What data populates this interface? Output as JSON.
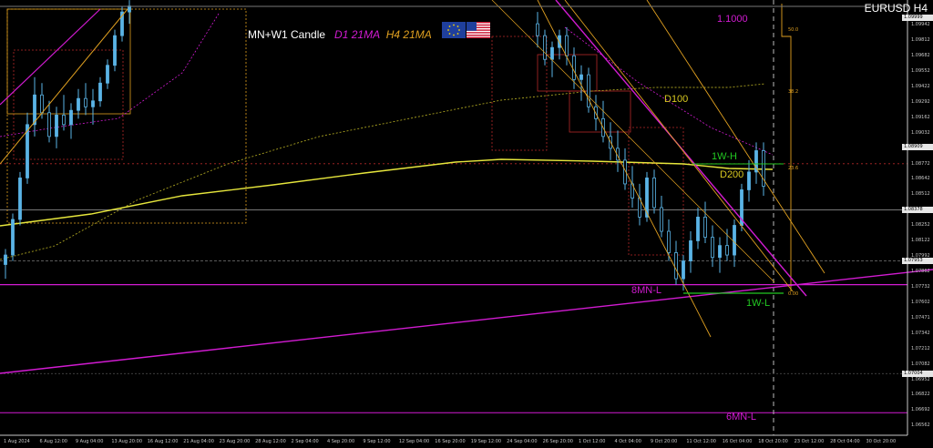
{
  "window": {
    "symbol_title": "EURUSD H4"
  },
  "overlay": {
    "title_white": "MN+W1 Candle",
    "title_d1": "D1 21MA",
    "title_h4": "H4 21MA"
  },
  "labels": {
    "level_1_1000": "1.1000",
    "d100": "D100",
    "d200": "D200",
    "w1_high": "1W-H",
    "w1_low": "1W-L",
    "mn8_low": "8MN-L",
    "mn6_low": "6MN-L"
  },
  "fibo_labels": [
    "50.0",
    "38.2",
    "23.6",
    "0.00"
  ],
  "colors": {
    "background": "#000000",
    "axis": "#c8c8c8",
    "candle": "#5ab4e6",
    "magenta": "#d21bd2",
    "yellow_ma": "#e6e63c",
    "orange": "#e0a020",
    "dark_red": "#b42828",
    "green": "#22c822",
    "gray": "#a0a0a0"
  },
  "chart_data": {
    "type": "candlestick",
    "symbol": "EURUSD",
    "timeframe": "H4",
    "ylim": [
      1.0648,
      1.1012
    ],
    "y_ticks": [
      "1.09942",
      "1.09812",
      "1.09682",
      "1.09552",
      "1.09422",
      "1.09292",
      "1.09162",
      "1.09032",
      "1.08902",
      "1.08772",
      "1.08642",
      "1.08512",
      "1.08382",
      "1.08252",
      "1.08122",
      "1.07992",
      "1.07862",
      "1.07732",
      "1.07602",
      "1.07471",
      "1.07342",
      "1.07212",
      "1.07082",
      "1.06952",
      "1.06822",
      "1.06692",
      "1.06562"
    ],
    "x_ticks": [
      "1 Aug 2024",
      "6 Aug 12:00",
      "9 Aug 04:00",
      "13 Aug 20:00",
      "16 Aug 12:00",
      "21 Aug 04:00",
      "23 Aug 20:00",
      "28 Aug 12:00",
      "2 Sep 04:00",
      "4 Sep 20:00",
      "9 Sep 12:00",
      "12 Sep 04:00",
      "16 Sep 20:00",
      "19 Sep 12:00",
      "24 Sep 04:00",
      "26 Sep 20:00",
      "1 Oct 12:00",
      "4 Oct 04:00",
      "9 Oct 20:00",
      "11 Oct 12:00",
      "16 Oct 04:00",
      "18 Oct 20:00",
      "23 Oct 12:00",
      "28 Oct 04:00",
      "30 Oct 20:00"
    ],
    "price_tags": [
      {
        "value": "1.09999",
        "y_price": 1.1,
        "color": "#e6e6e6"
      },
      {
        "value": "1.08909",
        "y_price": 1.0891,
        "color": "#e6e6e6"
      },
      {
        "value": "1.08378",
        "y_price": 1.0838,
        "color": "#e6e6e6"
      },
      {
        "value": "1.07953",
        "y_price": 1.0795,
        "color": "#e6e6e6"
      },
      {
        "value": "1.07004",
        "y_price": 1.07,
        "color": "#e6e6e6"
      }
    ],
    "candles_left": [
      [
        1.0792,
        1.0805,
        1.078,
        1.08
      ],
      [
        1.08,
        1.0835,
        1.0795,
        1.083
      ],
      [
        1.083,
        1.087,
        1.0825,
        1.0865
      ],
      [
        1.0865,
        1.092,
        1.086,
        1.091
      ],
      [
        1.091,
        1.095,
        1.09,
        1.0935
      ],
      [
        1.0935,
        1.0945,
        1.0915,
        1.092
      ],
      [
        1.092,
        1.093,
        1.0895,
        1.09
      ],
      [
        1.09,
        1.0925,
        1.089,
        1.0918
      ],
      [
        1.0918,
        1.0935,
        1.0905,
        1.091
      ],
      [
        1.091,
        1.0928,
        1.0898,
        1.0922
      ],
      [
        1.0922,
        1.094,
        1.0915,
        1.0932
      ],
      [
        1.0932,
        1.0945,
        1.0918,
        1.0925
      ],
      [
        1.0925,
        1.094,
        1.091,
        1.093
      ],
      [
        1.093,
        1.095,
        1.0925,
        1.0945
      ],
      [
        1.0945,
        1.0965,
        1.094,
        1.096
      ],
      [
        1.096,
        1.099,
        1.0955,
        1.0985
      ],
      [
        1.0985,
        1.101,
        1.098,
        1.1005
      ],
      [
        1.1005,
        1.1015,
        1.0995,
        1.101
      ]
    ],
    "candles_right": [
      [
        1.0995,
        1.1005,
        1.0975,
        1.0985
      ],
      [
        1.0985,
        1.099,
        1.096,
        1.0965
      ],
      [
        1.0965,
        1.098,
        1.095,
        1.0975
      ],
      [
        1.0975,
        1.099,
        1.0965,
        1.0985
      ],
      [
        1.0985,
        1.0992,
        1.096,
        1.0968
      ],
      [
        1.0968,
        1.0975,
        1.094,
        1.0948
      ],
      [
        1.0948,
        1.096,
        1.093,
        1.0952
      ],
      [
        1.0952,
        1.0958,
        1.092,
        1.0925
      ],
      [
        1.0925,
        1.0935,
        1.0905,
        1.0915
      ],
      [
        1.0915,
        1.093,
        1.0895,
        1.09
      ],
      [
        1.09,
        1.0912,
        1.088,
        1.089
      ],
      [
        1.089,
        1.0905,
        1.087,
        1.088
      ],
      [
        1.088,
        1.089,
        1.0855,
        1.086
      ],
      [
        1.086,
        1.0875,
        1.084,
        1.0848
      ],
      [
        1.0848,
        1.086,
        1.0825,
        1.0832
      ],
      [
        1.0832,
        1.087,
        1.0828,
        1.0865
      ],
      [
        1.0865,
        1.0872,
        1.0835,
        1.084
      ],
      [
        1.084,
        1.085,
        1.0815,
        1.082
      ],
      [
        1.082,
        1.083,
        1.0795,
        1.0802
      ],
      [
        1.0802,
        1.0812,
        1.0775,
        1.078
      ],
      [
        1.078,
        1.08,
        1.077,
        1.0795
      ],
      [
        1.0795,
        1.082,
        1.0785,
        1.0812
      ],
      [
        1.0812,
        1.084,
        1.0805,
        1.0832
      ],
      [
        1.0832,
        1.0845,
        1.081,
        1.0815
      ],
      [
        1.0815,
        1.0825,
        1.079,
        1.0798
      ],
      [
        1.0798,
        1.0815,
        1.0785,
        1.0808
      ],
      [
        1.0808,
        1.0822,
        1.0795,
        1.08
      ],
      [
        1.08,
        1.083,
        1.079,
        1.0825
      ],
      [
        1.0825,
        1.086,
        1.082,
        1.0855
      ],
      [
        1.0855,
        1.088,
        1.0845,
        1.087
      ],
      [
        1.087,
        1.0895,
        1.086,
        1.0888
      ],
      [
        1.0888,
        1.0895,
        1.085,
        1.0858
      ]
    ]
  }
}
